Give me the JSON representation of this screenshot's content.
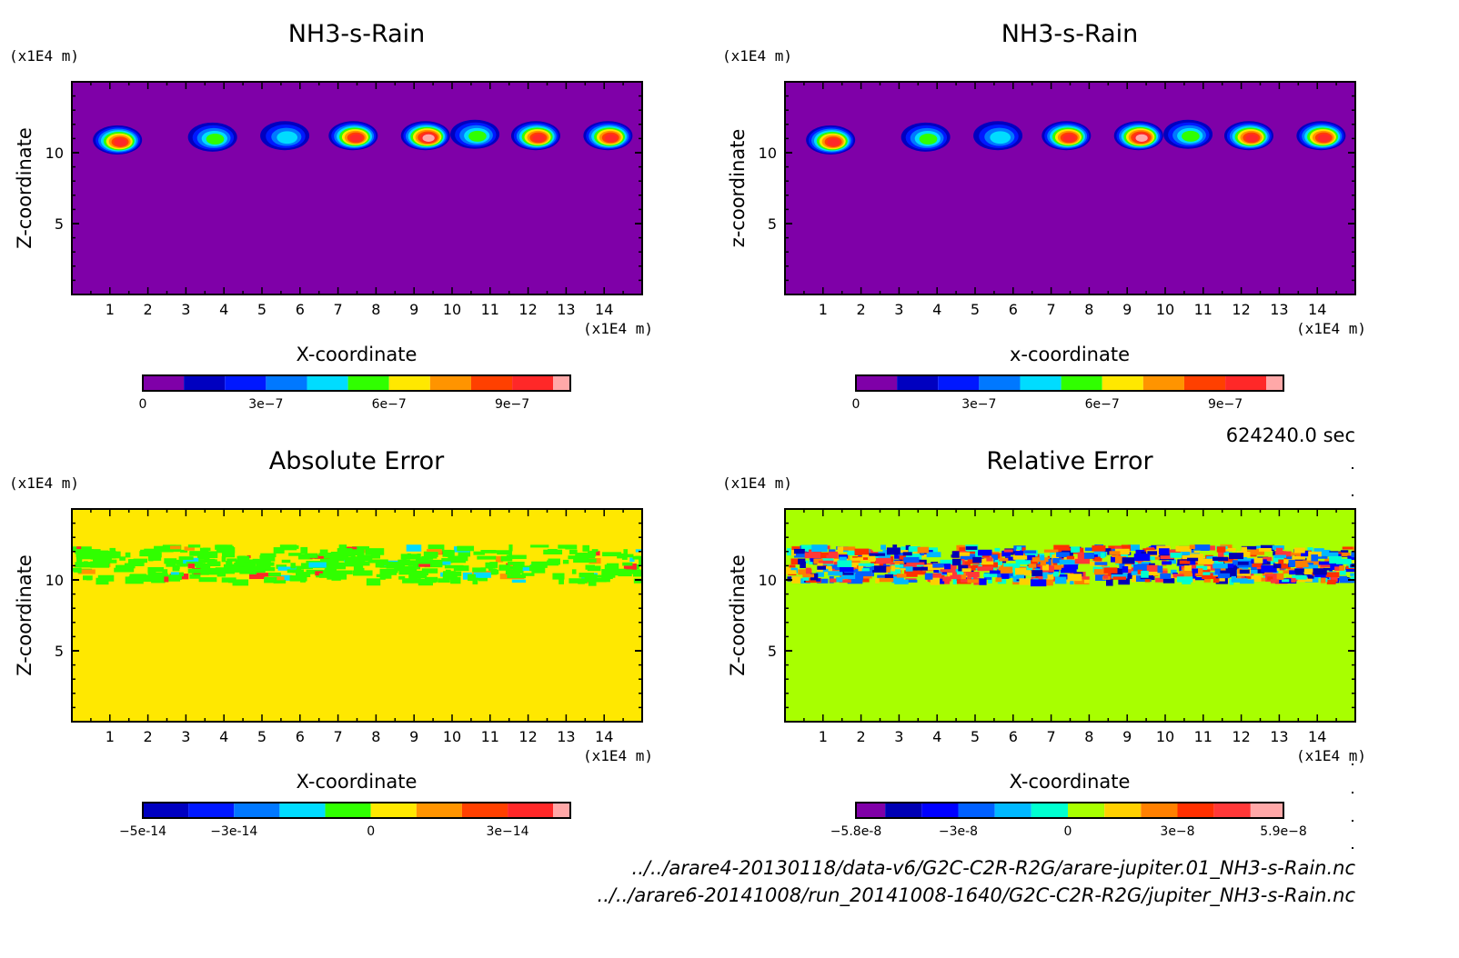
{
  "timestamp": "624240.0 sec",
  "files": [
    "../../arare4-20130118/data-v6/G2C-C2R-R2G/arare-jupiter.01_NH3-s-Rain.nc",
    "../../arare6-20141008/run_20141008-1640/G2C-C2R-R2G/jupiter_NH3-s-Rain.nc"
  ],
  "chart_data": [
    {
      "type": "heatmap",
      "title": "NH3-s-Rain",
      "xlabel": "X-coordinate",
      "ylabel": "Z-coordinate",
      "x_unit": "(x1E4 m)",
      "y_unit": "(x1E4 m)",
      "xlim": [
        0,
        15
      ],
      "ylim": [
        0,
        15
      ],
      "x_ticks": [
        "1",
        "2",
        "3",
        "4",
        "5",
        "6",
        "7",
        "8",
        "9",
        "10",
        "11",
        "12",
        "13",
        "14"
      ],
      "y_ticks": [
        "5",
        "10"
      ],
      "background_value": 0,
      "colorbar": {
        "levels": [
          0,
          1e-07,
          2e-07,
          3e-07,
          4e-07,
          5e-07,
          6e-07,
          7e-07,
          8e-07,
          9e-07,
          1e-06
        ],
        "colors": [
          "#7f00a8",
          "#0000c0",
          "#0018ff",
          "#0078ff",
          "#00dcff",
          "#30ff00",
          "#ffe800",
          "#ff9400",
          "#ff4000",
          "#ff2828",
          "#ffa8a8"
        ],
        "tick_labels": [
          "0",
          "3e-7",
          "6e-7",
          "9e-7"
        ],
        "tick_values": [
          0,
          3e-07,
          6e-07,
          9e-07
        ]
      },
      "cells": [
        {
          "x": 1.2,
          "z": 10.9,
          "peak": 9.5e-07
        },
        {
          "x": 3.7,
          "z": 11.1,
          "peak": 5.5e-07
        },
        {
          "x": 5.6,
          "z": 11.2,
          "peak": 4.5e-07
        },
        {
          "x": 7.4,
          "z": 11.2,
          "peak": 9e-07
        },
        {
          "x": 9.3,
          "z": 11.2,
          "peak": 1e-06
        },
        {
          "x": 10.6,
          "z": 11.3,
          "peak": 5e-07
        },
        {
          "x": 12.2,
          "z": 11.2,
          "peak": 9e-07
        },
        {
          "x": 14.1,
          "z": 11.2,
          "peak": 9.5e-07
        }
      ]
    },
    {
      "type": "heatmap",
      "title": "NH3-s-Rain",
      "xlabel": "x-coordinate",
      "ylabel": "z-coordinate",
      "x_unit": "(x1E4 m)",
      "y_unit": "(x1E4 m)",
      "xlim": [
        0,
        15
      ],
      "ylim": [
        0,
        15
      ],
      "x_ticks": [
        "1",
        "2",
        "3",
        "4",
        "5",
        "6",
        "7",
        "8",
        "9",
        "10",
        "11",
        "12",
        "13",
        "14"
      ],
      "y_ticks": [
        "5",
        "10"
      ],
      "background_value": 0,
      "colorbar": {
        "levels": [
          0,
          1e-07,
          2e-07,
          3e-07,
          4e-07,
          5e-07,
          6e-07,
          7e-07,
          8e-07,
          9e-07,
          1e-06
        ],
        "colors": [
          "#7f00a8",
          "#0000c0",
          "#0018ff",
          "#0078ff",
          "#00dcff",
          "#30ff00",
          "#ffe800",
          "#ff9400",
          "#ff4000",
          "#ff2828",
          "#ffa8a8"
        ],
        "tick_labels": [
          "0",
          "3e-7",
          "6e-7",
          "9e-7"
        ],
        "tick_values": [
          0,
          3e-07,
          6e-07,
          9e-07
        ]
      },
      "cells": [
        {
          "x": 1.2,
          "z": 10.9,
          "peak": 9.5e-07
        },
        {
          "x": 3.7,
          "z": 11.1,
          "peak": 5.5e-07
        },
        {
          "x": 5.6,
          "z": 11.2,
          "peak": 4.5e-07
        },
        {
          "x": 7.4,
          "z": 11.2,
          "peak": 9e-07
        },
        {
          "x": 9.3,
          "z": 11.2,
          "peak": 1e-06
        },
        {
          "x": 10.6,
          "z": 11.3,
          "peak": 5e-07
        },
        {
          "x": 12.2,
          "z": 11.2,
          "peak": 9e-07
        },
        {
          "x": 14.1,
          "z": 11.2,
          "peak": 9.5e-07
        }
      ]
    },
    {
      "type": "heatmap",
      "title": "Absolute Error",
      "xlabel": "X-coordinate",
      "ylabel": "Z-coordinate",
      "x_unit": "(x1E4 m)",
      "y_unit": "(x1E4 m)",
      "xlim": [
        0,
        15
      ],
      "ylim": [
        0,
        15
      ],
      "x_ticks": [
        "1",
        "2",
        "3",
        "4",
        "5",
        "6",
        "7",
        "8",
        "9",
        "10",
        "11",
        "12",
        "13",
        "14"
      ],
      "y_ticks": [
        "5",
        "10"
      ],
      "background_value": 0,
      "noise_band_z": [
        10,
        12.5
      ],
      "colorbar": {
        "levels": [
          -5e-14,
          -4e-14,
          -3e-14,
          -2e-14,
          -1e-14,
          0,
          1e-14,
          2e-14,
          3e-14,
          4e-14
        ],
        "colors": [
          "#0000c0",
          "#0018ff",
          "#0078ff",
          "#00dcff",
          "#30ff00",
          "#ffe800",
          "#ff9400",
          "#ff4000",
          "#ff2828",
          "#ffa8a8"
        ],
        "tick_labels": [
          "-5e-14",
          "-3e-14",
          "0",
          "3e-14"
        ],
        "tick_values": [
          -5e-14,
          -3e-14,
          0,
          3e-14
        ]
      }
    },
    {
      "type": "heatmap",
      "title": "Relative Error",
      "xlabel": "X-coordinate",
      "ylabel": "Z-coordinate",
      "x_unit": "(x1E4 m)",
      "y_unit": "(x1E4 m)",
      "xlim": [
        0,
        15
      ],
      "ylim": [
        0,
        15
      ],
      "x_ticks": [
        "1",
        "2",
        "3",
        "4",
        "5",
        "6",
        "7",
        "8",
        "9",
        "10",
        "11",
        "12",
        "13",
        "14"
      ],
      "y_ticks": [
        "5",
        "10"
      ],
      "background_value": 0,
      "noise_band_z": [
        10,
        12.5
      ],
      "colorbar": {
        "levels": [
          -5.8e-08,
          -5e-08,
          -4e-08,
          -3e-08,
          -2e-08,
          -1e-08,
          0,
          1e-08,
          2e-08,
          3e-08,
          4e-08,
          5e-08,
          5.9e-08
        ],
        "colors": [
          "#8000a8",
          "#0000b4",
          "#0000ff",
          "#0060ff",
          "#00b8ff",
          "#00ffd0",
          "#a8ff00",
          "#ffd000",
          "#ff8000",
          "#ff3000",
          "#ff3838",
          "#ffa8a8"
        ],
        "tick_labels": [
          "-5.8e-8",
          "-3e-8",
          "0",
          "3e-8",
          "5.9e-8"
        ],
        "tick_values": [
          -5.8e-08,
          -3e-08,
          0,
          3e-08,
          5.9e-08
        ]
      }
    }
  ]
}
